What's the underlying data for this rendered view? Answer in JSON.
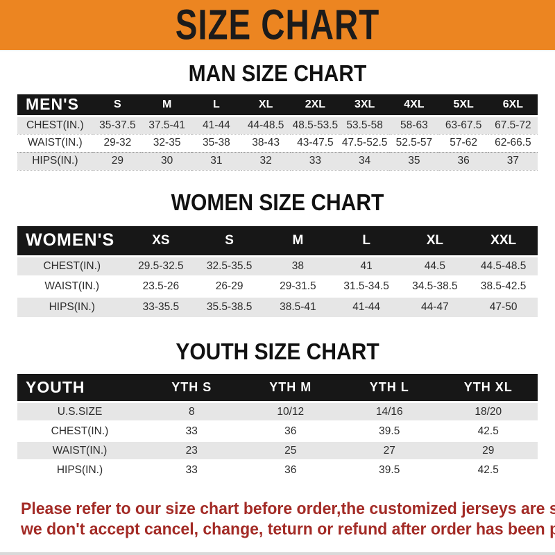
{
  "banner": {
    "title": "SIZE CHART"
  },
  "colors": {
    "banner_bg": "#EC8521",
    "band_bg": "#171717",
    "row_alt": "#E6E6E6",
    "note_red": "#A32B26"
  },
  "sections": [
    {
      "heading": "MAN SIZE CHART",
      "header_label": "MEN'S",
      "columns": [
        "S",
        "M",
        "L",
        "XL",
        "2XL",
        "3XL",
        "4XL",
        "5XL",
        "6XL"
      ],
      "rows": [
        {
          "label": "CHEST(IN.)",
          "values": [
            "35-37.5",
            "37.5-41",
            "41-44",
            "44-48.5",
            "48.5-53.5",
            "53.5-58",
            "58-63",
            "63-67.5",
            "67.5-72"
          ]
        },
        {
          "label": "WAIST(IN.)",
          "values": [
            "29-32",
            "32-35",
            "35-38",
            "38-43",
            "43-47.5",
            "47.5-52.5",
            "52.5-57",
            "57-62",
            "62-66.5"
          ]
        },
        {
          "label": "HIPS(IN.)",
          "values": [
            "29",
            "30",
            "31",
            "32",
            "33",
            "34",
            "35",
            "36",
            "37"
          ]
        }
      ]
    },
    {
      "heading": "WOMEN SIZE CHART",
      "header_label": "WOMEN'S",
      "columns": [
        "XS",
        "S",
        "M",
        "L",
        "XL",
        "XXL"
      ],
      "rows": [
        {
          "label": "CHEST(IN.)",
          "values": [
            "29.5-32.5",
            "32.5-35.5",
            "38",
            "41",
            "44.5",
            "44.5-48.5"
          ]
        },
        {
          "label": "WAIST(IN.)",
          "values": [
            "23.5-26",
            "26-29",
            "29-31.5",
            "31.5-34.5",
            "34.5-38.5",
            "38.5-42.5"
          ]
        },
        {
          "label": "HIPS(IN.)",
          "values": [
            "33-35.5",
            "35.5-38.5",
            "38.5-41",
            "41-44",
            "44-47",
            "47-50"
          ]
        }
      ]
    },
    {
      "heading": "YOUTH SIZE CHART",
      "header_label": "YOUTH",
      "columns": [
        "YTH S",
        "YTH M",
        "YTH L",
        "YTH XL"
      ],
      "rows": [
        {
          "label": "U.S.SIZE",
          "values": [
            "8",
            "10/12",
            "14/16",
            "18/20"
          ]
        },
        {
          "label": "CHEST(IN.)",
          "values": [
            "33",
            "36",
            "39.5",
            "42.5"
          ]
        },
        {
          "label": "WAIST(IN.)",
          "values": [
            "23",
            "25",
            "27",
            "29"
          ]
        },
        {
          "label": "HIPS(IN.)",
          "values": [
            "33",
            "36",
            "39.5",
            "42.5"
          ]
        }
      ]
    }
  ],
  "footer": {
    "line1": "Please refer to our size chart before order,the customized jerseys are special products,",
    "line2": "we don't accept cancel, change, teturn or refund after order has been placed!"
  }
}
